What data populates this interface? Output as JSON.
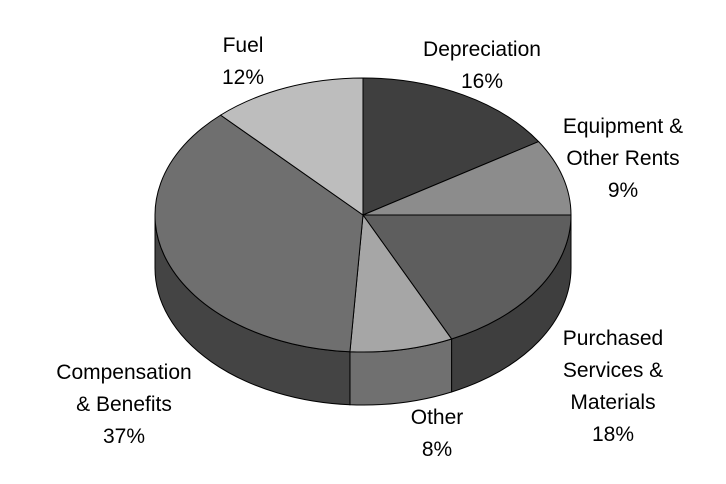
{
  "chart_data": {
    "type": "pie",
    "style": "3d",
    "start_angle_deg": 0,
    "direction": "clockwise",
    "slices": [
      {
        "lines": [
          "Depreciation",
          "16%"
        ],
        "value": 16,
        "color": "#3f3f3f",
        "side_color": "#2a2a2a"
      },
      {
        "lines": [
          "Equipment &",
          "Other Rents",
          "9%"
        ],
        "value": 9,
        "color": "#8c8c8c",
        "side_color": "#5e5e5e"
      },
      {
        "lines": [
          "Purchased",
          "Services &",
          "Materials",
          "18%"
        ],
        "value": 18,
        "color": "#5e5e5e",
        "side_color": "#3e3e3e"
      },
      {
        "lines": [
          "Other",
          "8%"
        ],
        "value": 8,
        "color": "#a6a6a6",
        "side_color": "#707070"
      },
      {
        "lines": [
          "Compensation",
          "& Benefits",
          "37%"
        ],
        "value": 37,
        "color": "#6f6f6f",
        "side_color": "#444444"
      },
      {
        "lines": [
          "Fuel",
          "12%"
        ],
        "value": 12,
        "color": "#bdbdbd",
        "side_color": "#868686"
      }
    ]
  }
}
